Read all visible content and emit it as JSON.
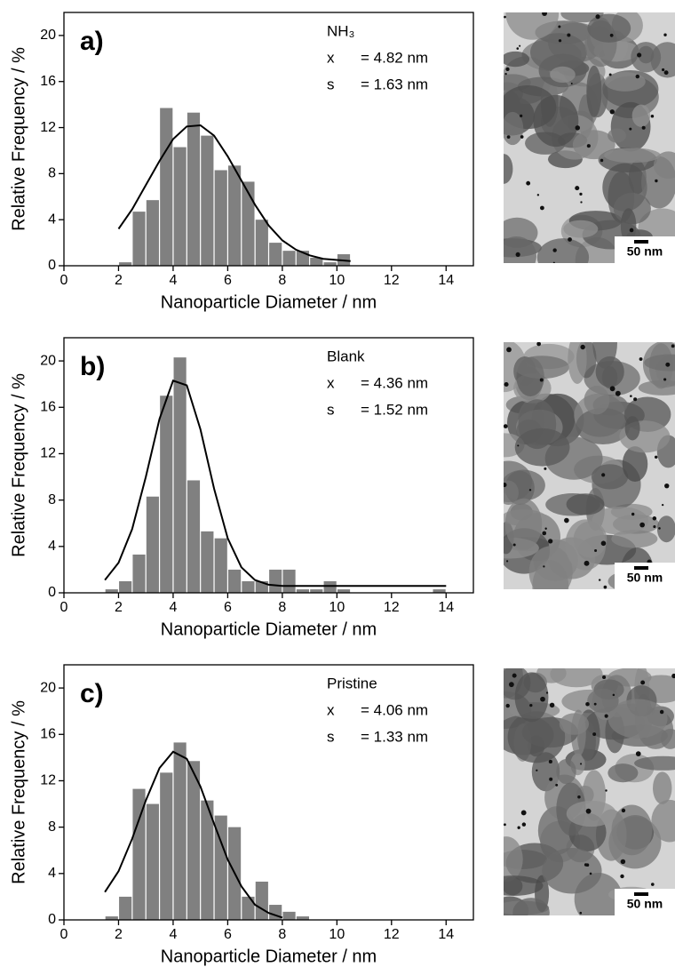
{
  "chart_data": [
    {
      "type": "histogram",
      "label": "a)",
      "sample": "NH₃",
      "stats": [
        {
          "symbol": "x",
          "value": "= 4.82 nm"
        },
        {
          "symbol": "s",
          "value": "= 1.63 nm"
        }
      ],
      "xlabel": "Nanoparticle Diameter / nm",
      "ylabel": "Relative Frequency / %",
      "bins": [
        2.0,
        2.5,
        3.0,
        3.5,
        4.0,
        4.5,
        5.0,
        5.5,
        6.0,
        6.5,
        7.0,
        7.5,
        8.0,
        8.5,
        9.0,
        9.5,
        10.0,
        10.5
      ],
      "values": [
        0.3,
        4.7,
        5.7,
        13.7,
        10.3,
        13.3,
        11.3,
        8.3,
        8.7,
        7.3,
        4.0,
        2.0,
        1.3,
        1.3,
        0.7,
        0.3,
        1.0
      ],
      "color": "#808080",
      "fit": {
        "x": [
          2.0,
          2.5,
          3.0,
          3.5,
          4.0,
          4.5,
          5.0,
          5.5,
          6.0,
          6.5,
          7.0,
          7.5,
          8.0,
          8.5,
          9.0,
          9.5,
          10.0,
          10.5
        ],
        "y": [
          3.2,
          4.9,
          7.0,
          9.1,
          11.0,
          12.1,
          12.2,
          11.3,
          9.5,
          7.4,
          5.3,
          3.5,
          2.2,
          1.4,
          0.9,
          0.6,
          0.5,
          0.4
        ]
      },
      "xlim": [
        0,
        15
      ],
      "ylim": [
        0,
        22
      ],
      "xticks": [
        0,
        2,
        4,
        6,
        8,
        10,
        12,
        14
      ],
      "yticks": [
        0,
        4,
        8,
        12,
        16,
        20
      ],
      "scale_bar": "50 nm"
    },
    {
      "type": "histogram",
      "label": "b)",
      "sample": "Blank",
      "stats": [
        {
          "symbol": "x",
          "value": "= 4.36 nm"
        },
        {
          "symbol": "s",
          "value": "= 1.52 nm"
        }
      ],
      "xlabel": "Nanoparticle Diameter / nm",
      "ylabel": "Relative Frequency / %",
      "bins": [
        1.5,
        2.0,
        2.5,
        3.0,
        3.5,
        4.0,
        4.5,
        5.0,
        5.5,
        6.0,
        6.5,
        7.0,
        7.5,
        8.0,
        8.5,
        9.0,
        9.5,
        10.0,
        10.5,
        11.0,
        11.5,
        12.0,
        12.5,
        13.0,
        13.5,
        14.0
      ],
      "values": [
        0.3,
        1.0,
        3.3,
        8.3,
        17.0,
        20.3,
        9.7,
        5.3,
        4.7,
        2.0,
        1.0,
        1.0,
        2.0,
        2.0,
        0.3,
        0.3,
        1.0,
        0.3,
        0,
        0,
        0,
        0,
        0,
        0,
        0.3
      ],
      "color": "#808080",
      "fit": {
        "x": [
          1.5,
          2.0,
          2.5,
          3.0,
          3.5,
          4.0,
          4.5,
          5.0,
          5.5,
          6.0,
          6.5,
          7.0,
          7.5,
          8.0,
          10.0,
          14.0
        ],
        "y": [
          1.1,
          2.6,
          5.5,
          10.0,
          15.0,
          18.3,
          17.9,
          14.1,
          9.0,
          4.7,
          2.2,
          1.1,
          0.7,
          0.6,
          0.6,
          0.6
        ]
      },
      "xlim": [
        0,
        15
      ],
      "ylim": [
        0,
        22
      ],
      "xticks": [
        0,
        2,
        4,
        6,
        8,
        10,
        12,
        14
      ],
      "yticks": [
        0,
        4,
        8,
        12,
        16,
        20
      ],
      "scale_bar": "50 nm"
    },
    {
      "type": "histogram",
      "label": "c)",
      "sample": "Pristine",
      "stats": [
        {
          "symbol": "x",
          "value": "= 4.06 nm"
        },
        {
          "symbol": "s",
          "value": "= 1.33 nm"
        }
      ],
      "xlabel": "Nanoparticle Diameter / nm",
      "ylabel": "Relative Frequency / %",
      "bins": [
        1.5,
        2.0,
        2.5,
        3.0,
        3.5,
        4.0,
        4.5,
        5.0,
        5.5,
        6.0,
        6.5,
        7.0,
        7.5,
        8.0,
        8.5,
        9.0
      ],
      "values": [
        0.3,
        2.0,
        11.3,
        10.0,
        12.7,
        15.3,
        13.7,
        10.3,
        9.0,
        8.0,
        2.0,
        3.3,
        1.3,
        0.7,
        0.3
      ],
      "color": "#808080",
      "fit": {
        "x": [
          1.5,
          2.0,
          2.5,
          3.0,
          3.5,
          4.0,
          4.5,
          5.0,
          5.5,
          6.0,
          6.5,
          7.0,
          7.5,
          8.0
        ],
        "y": [
          2.4,
          4.2,
          7.0,
          10.3,
          13.1,
          14.5,
          13.9,
          11.5,
          8.3,
          5.2,
          2.9,
          1.3,
          0.6,
          0.2
        ]
      },
      "xlim": [
        0,
        15
      ],
      "ylim": [
        0,
        22
      ],
      "xticks": [
        0,
        2,
        4,
        6,
        8,
        10,
        12,
        14
      ],
      "yticks": [
        0,
        4,
        8,
        12,
        16,
        20
      ],
      "scale_bar": "50 nm"
    }
  ]
}
